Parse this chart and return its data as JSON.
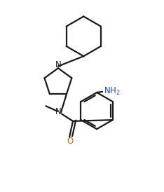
{
  "bg_color": "#ffffff",
  "line_color": "#1a1a1a",
  "o_color": "#cc6600",
  "nh2_color": "#2244aa",
  "line_width": 1.6,
  "figsize": [
    2.34,
    2.74
  ],
  "dpi": 100,
  "xlim": [
    0,
    10
  ],
  "ylim": [
    0,
    12
  ]
}
